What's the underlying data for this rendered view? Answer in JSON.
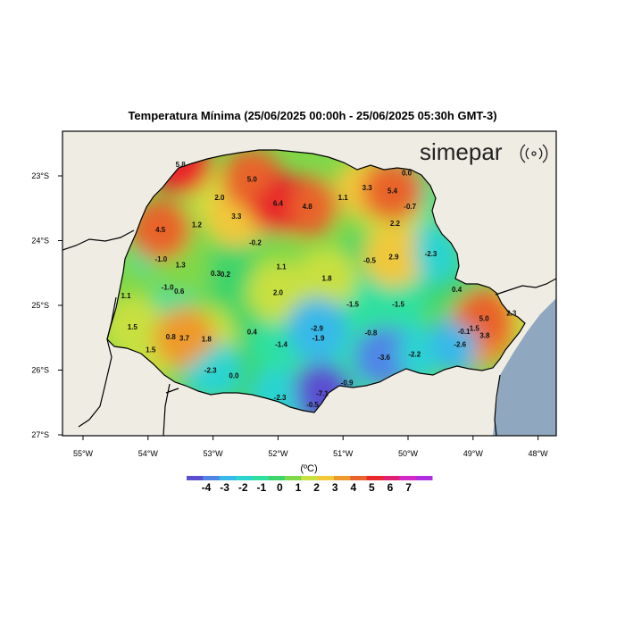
{
  "title": "Temperatura Mínima (25/06/2025 00:00h - 25/06/2025 05:30h GMT-3)",
  "brand": "simepar",
  "colors": {
    "land_outside": "#efece4",
    "ocean": "#8fa8bf",
    "border": "#000000",
    "scale": [
      "#5a4fd0",
      "#4f86e6",
      "#37b8e8",
      "#2cd4d0",
      "#2ee0a0",
      "#3ed46a",
      "#7fd84a",
      "#c8e040",
      "#f0c83a",
      "#ee9a2a",
      "#e8642a",
      "#e8282a",
      "#e01e72",
      "#d428c8",
      "#b02ee0"
    ]
  },
  "colorbar": {
    "unit": "(ºC)",
    "ticks": [
      "-4",
      "-3",
      "-2",
      "-1",
      "0",
      "1",
      "2",
      "3",
      "4",
      "5",
      "6",
      "7"
    ]
  },
  "axes": {
    "lon_ticks": [
      "55°W",
      "54°W",
      "53°W",
      "52°W",
      "51°W",
      "50°W",
      "49°W",
      "48°W"
    ],
    "lat_ticks": [
      "23°S",
      "24°S",
      "25°S",
      "26°S",
      "27°S"
    ]
  },
  "stations": [
    {
      "v": "5.8",
      "lon": -53.5,
      "lat": -22.82
    },
    {
      "v": "5.0",
      "lon": -52.4,
      "lat": -23.05
    },
    {
      "v": "2.0",
      "lon": -52.9,
      "lat": -23.33
    },
    {
      "v": "6.4",
      "lon": -52.0,
      "lat": -23.42
    },
    {
      "v": "4.8",
      "lon": -51.55,
      "lat": -23.47
    },
    {
      "v": "1.1",
      "lon": -51.0,
      "lat": -23.33
    },
    {
      "v": "3.3",
      "lon": -50.63,
      "lat": -23.18
    },
    {
      "v": "5.4",
      "lon": -50.24,
      "lat": -23.23
    },
    {
      "v": "0.0",
      "lon": -50.02,
      "lat": -22.95
    },
    {
      "v": "-0.7",
      "lon": -49.97,
      "lat": -23.47
    },
    {
      "v": "3.3",
      "lon": -52.64,
      "lat": -23.62
    },
    {
      "v": "1.2",
      "lon": -53.25,
      "lat": -23.75
    },
    {
      "v": "4.5",
      "lon": -53.81,
      "lat": -23.83
    },
    {
      "v": "2.2",
      "lon": -50.2,
      "lat": -23.73
    },
    {
      "v": "-0.2",
      "lon": -52.35,
      "lat": -24.03
    },
    {
      "v": "-1.0",
      "lon": -53.8,
      "lat": -24.28
    },
    {
      "v": "1.3",
      "lon": -53.5,
      "lat": -24.37
    },
    {
      "v": "1.1",
      "lon": -51.95,
      "lat": -24.4
    },
    {
      "v": "-0.5",
      "lon": -50.59,
      "lat": -24.3
    },
    {
      "v": "2.9",
      "lon": -50.22,
      "lat": -24.25
    },
    {
      "v": "-2.3",
      "lon": -49.65,
      "lat": -24.2
    },
    {
      "v": "0.3",
      "lon": -52.96,
      "lat": -24.5
    },
    {
      "v": "0.2",
      "lon": -52.81,
      "lat": -24.52
    },
    {
      "v": "1.8",
      "lon": -51.25,
      "lat": -24.58
    },
    {
      "v": "-1.0",
      "lon": -53.7,
      "lat": -24.72
    },
    {
      "v": "0.6",
      "lon": -53.52,
      "lat": -24.78
    },
    {
      "v": "2.0",
      "lon": -52.0,
      "lat": -24.8
    },
    {
      "v": "1.1",
      "lon": -54.34,
      "lat": -24.85
    },
    {
      "v": "0.4",
      "lon": -49.25,
      "lat": -24.75
    },
    {
      "v": "-1.5",
      "lon": -50.85,
      "lat": -24.98
    },
    {
      "v": "-1.5",
      "lon": -50.15,
      "lat": -24.98
    },
    {
      "v": "1.5",
      "lon": -54.24,
      "lat": -25.33
    },
    {
      "v": "5.0",
      "lon": -48.83,
      "lat": -25.2
    },
    {
      "v": "2.3",
      "lon": -48.41,
      "lat": -25.12
    },
    {
      "v": "-2.9",
      "lon": -51.4,
      "lat": -25.35
    },
    {
      "v": "-0.8",
      "lon": -50.57,
      "lat": -25.42
    },
    {
      "v": "-0.1",
      "lon": -49.14,
      "lat": -25.4
    },
    {
      "v": "1.5",
      "lon": -48.98,
      "lat": -25.35
    },
    {
      "v": "3.8",
      "lon": -48.82,
      "lat": -25.46
    },
    {
      "v": "0.8",
      "lon": -53.65,
      "lat": -25.48
    },
    {
      "v": "3.7",
      "lon": -53.44,
      "lat": -25.5
    },
    {
      "v": "1.8",
      "lon": -53.1,
      "lat": -25.52
    },
    {
      "v": "0.4",
      "lon": -52.4,
      "lat": -25.41
    },
    {
      "v": "-1.9",
      "lon": -51.38,
      "lat": -25.5
    },
    {
      "v": "-1.4",
      "lon": -51.95,
      "lat": -25.6
    },
    {
      "v": "-2.6",
      "lon": -49.2,
      "lat": -25.6
    },
    {
      "v": "1.5",
      "lon": -53.96,
      "lat": -25.68
    },
    {
      "v": "-3.6",
      "lon": -50.37,
      "lat": -25.8
    },
    {
      "v": "-2.2",
      "lon": -49.9,
      "lat": -25.75
    },
    {
      "v": "-2.3",
      "lon": -53.04,
      "lat": -26.0
    },
    {
      "v": "0.0",
      "lon": -52.68,
      "lat": -26.08
    },
    {
      "v": "-0.9",
      "lon": -50.94,
      "lat": -26.19
    },
    {
      "v": "-2.3",
      "lon": -51.97,
      "lat": -26.42
    },
    {
      "v": "-7.1",
      "lon": -51.32,
      "lat": -26.36
    },
    {
      "v": "-0.5",
      "lon": -51.47,
      "lat": -26.53
    }
  ]
}
